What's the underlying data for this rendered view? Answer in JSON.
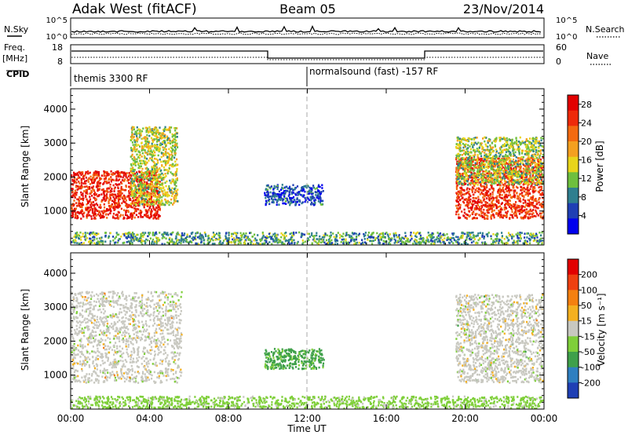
{
  "header": {
    "station": "Adak West (fitACF)",
    "beam": "Beam 05",
    "date": "23/Nov/2014"
  },
  "panels": {
    "nsky": {
      "left_label": "N.Sky",
      "right_label": "N.Search",
      "ticks_left": [
        "10^5",
        "10^0"
      ],
      "ticks_right": [
        "10^5",
        "10^0"
      ]
    },
    "freq": {
      "left_label_1": "Freq.",
      "left_label_2": "[MHz]",
      "right_label": "Nave",
      "ticks_left": [
        "18",
        "8"
      ],
      "ticks_right": [
        "60",
        "0"
      ]
    },
    "cpid": {
      "label": "CPID",
      "segments": [
        {
          "name": "themis 3300 RF",
          "start_h": 0,
          "end_h": 12
        },
        {
          "name": "normalsound (fast) -157 RF",
          "start_h": 12,
          "end_h": 24
        }
      ]
    }
  },
  "chart_data": [
    {
      "type": "heatmap",
      "title": "",
      "quantity": "Power",
      "xlabel": "Time UT",
      "ylabel": "Slant Range [km]",
      "xlim": [
        "00:00",
        "24:00"
      ],
      "xticks": [
        "00:00",
        "04:00",
        "08:00",
        "12:00",
        "16:00",
        "20:00",
        "00:00"
      ],
      "ylim": [
        0,
        4600
      ],
      "yticks": [
        1000,
        2000,
        3000,
        4000
      ],
      "colorbar": {
        "label": "Power [dB]",
        "ticks": [
          4,
          8,
          12,
          16,
          20,
          24,
          28
        ],
        "range": [
          0,
          30
        ],
        "colors": [
          "#0000ee",
          "#1f3fb4",
          "#2f7f8f",
          "#6ebf3e",
          "#e8d51a",
          "#f4a020",
          "#f36a10",
          "#ee2a0a",
          "#e20000"
        ]
      },
      "regions": [
        {
          "name": "early-strong-echo",
          "t_start_h": 0.0,
          "t_end_h": 4.5,
          "range_min_km": 800,
          "range_max_km": 2200,
          "power_db": 26
        },
        {
          "name": "early-sloping-band",
          "t_start_h": 3.0,
          "t_end_h": 5.4,
          "range_min_km": 1200,
          "range_max_km": 3500,
          "power_db": 14
        },
        {
          "name": "midday-patch",
          "t_start_h": 9.8,
          "t_end_h": 12.8,
          "range_min_km": 1200,
          "range_max_km": 1800,
          "power_db": 6
        },
        {
          "name": "late-strong-echo",
          "t_start_h": 19.5,
          "t_end_h": 24.0,
          "range_min_km": 800,
          "range_max_km": 2600,
          "power_db": 25
        },
        {
          "name": "late-upper-band",
          "t_start_h": 19.5,
          "t_end_h": 24.0,
          "range_min_km": 1800,
          "range_max_km": 3200,
          "power_db": 13
        },
        {
          "name": "ground-scatter-strip",
          "t_start_h": 0.0,
          "t_end_h": 24.0,
          "range_min_km": 0,
          "range_max_km": 400,
          "power_db": 10
        }
      ]
    },
    {
      "type": "heatmap",
      "title": "",
      "quantity": "Velocity",
      "xlabel": "Time UT",
      "ylabel": "Slant Range [km]",
      "xlim": [
        "00:00",
        "24:00"
      ],
      "xticks": [
        "00:00",
        "04:00",
        "08:00",
        "12:00",
        "16:00",
        "20:00",
        "00:00"
      ],
      "ylim": [
        0,
        4600
      ],
      "yticks": [
        1000,
        2000,
        3000,
        4000
      ],
      "colorbar": {
        "label": "Velocity [m s⁻¹]",
        "ticks": [
          200,
          100,
          50,
          15,
          -15,
          -50,
          -100,
          -200
        ],
        "range": [
          -250,
          250
        ],
        "colors": [
          "#1f3fb4",
          "#2f7fc0",
          "#3fa04a",
          "#7fcf3a",
          "#c8c8c0",
          "#f4b020",
          "#f48010",
          "#ee4010",
          "#e20000"
        ]
      },
      "regions": [
        {
          "name": "early-ground-scatter",
          "t_start_h": 0.0,
          "t_end_h": 5.6,
          "range_min_km": 800,
          "range_max_km": 3500,
          "velocity_ms": 0
        },
        {
          "name": "midday-negative-patch",
          "t_start_h": 9.8,
          "t_end_h": 12.8,
          "range_min_km": 1200,
          "range_max_km": 1800,
          "velocity_ms": -100
        },
        {
          "name": "late-ground-scatter",
          "t_start_h": 19.5,
          "t_end_h": 24.0,
          "range_min_km": 800,
          "range_max_km": 3400,
          "velocity_ms": 0
        },
        {
          "name": "low-range-strip",
          "t_start_h": 0.0,
          "t_end_h": 24.0,
          "range_min_km": 0,
          "range_max_km": 400,
          "velocity_ms": -50
        }
      ]
    }
  ]
}
